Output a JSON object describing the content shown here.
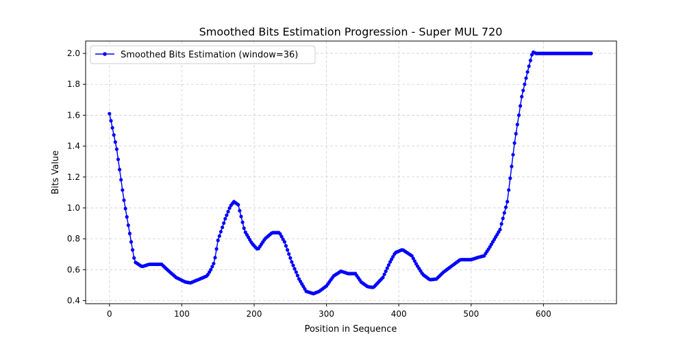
{
  "chart_data": {
    "type": "line",
    "title": "Smoothed Bits Estimation Progression - Super MUL 720",
    "xlabel": "Position in Sequence",
    "ylabel": "Bits Value",
    "xlim": [
      -33,
      701
    ],
    "ylim": [
      0.38,
      2.08
    ],
    "xticks": [
      0,
      100,
      200,
      300,
      400,
      500,
      600
    ],
    "yticks": [
      0.4,
      0.6,
      0.8,
      1.0,
      1.2,
      1.4,
      1.6,
      1.8,
      2.0
    ],
    "xtick_labels": [
      "0",
      "100",
      "200",
      "300",
      "400",
      "500",
      "600"
    ],
    "ytick_labels": [
      "0.4",
      "0.6",
      "0.8",
      "1.0",
      "1.2",
      "1.4",
      "1.6",
      "1.8",
      "2.0"
    ],
    "grid": true,
    "legend_position": "upper-left",
    "series": [
      {
        "name": "Smoothed Bits Estimation (window=36)",
        "color": "#0000ff",
        "marker": "circle",
        "keypoints": [
          [
            0,
            1.61
          ],
          [
            10,
            1.38
          ],
          [
            20,
            1.05
          ],
          [
            30,
            0.78
          ],
          [
            35,
            0.65
          ],
          [
            45,
            0.62
          ],
          [
            55,
            0.635
          ],
          [
            72,
            0.635
          ],
          [
            80,
            0.6
          ],
          [
            92,
            0.55
          ],
          [
            105,
            0.52
          ],
          [
            112,
            0.515
          ],
          [
            125,
            0.54
          ],
          [
            135,
            0.56
          ],
          [
            140,
            0.6
          ],
          [
            145,
            0.65
          ],
          [
            150,
            0.79
          ],
          [
            160,
            0.93
          ],
          [
            167,
            1.01
          ],
          [
            172,
            1.04
          ],
          [
            178,
            1.02
          ],
          [
            187,
            0.85
          ],
          [
            197,
            0.77
          ],
          [
            205,
            0.73
          ],
          [
            215,
            0.8
          ],
          [
            225,
            0.84
          ],
          [
            235,
            0.84
          ],
          [
            242,
            0.78
          ],
          [
            252,
            0.65
          ],
          [
            262,
            0.54
          ],
          [
            272,
            0.46
          ],
          [
            282,
            0.445
          ],
          [
            290,
            0.46
          ],
          [
            300,
            0.495
          ],
          [
            310,
            0.56
          ],
          [
            320,
            0.59
          ],
          [
            330,
            0.575
          ],
          [
            340,
            0.575
          ],
          [
            348,
            0.52
          ],
          [
            357,
            0.49
          ],
          [
            365,
            0.485
          ],
          [
            378,
            0.55
          ],
          [
            388,
            0.65
          ],
          [
            395,
            0.71
          ],
          [
            405,
            0.73
          ],
          [
            418,
            0.69
          ],
          [
            425,
            0.63
          ],
          [
            433,
            0.57
          ],
          [
            443,
            0.535
          ],
          [
            452,
            0.54
          ],
          [
            462,
            0.585
          ],
          [
            472,
            0.62
          ],
          [
            485,
            0.665
          ],
          [
            500,
            0.665
          ],
          [
            510,
            0.68
          ],
          [
            518,
            0.69
          ],
          [
            525,
            0.74
          ],
          [
            540,
            0.86
          ],
          [
            550,
            1.04
          ],
          [
            560,
            1.42
          ],
          [
            570,
            1.72
          ],
          [
            578,
            1.88
          ],
          [
            585,
            2.01
          ],
          [
            590,
            2.0
          ],
          [
            667,
            2.0
          ]
        ]
      }
    ]
  }
}
